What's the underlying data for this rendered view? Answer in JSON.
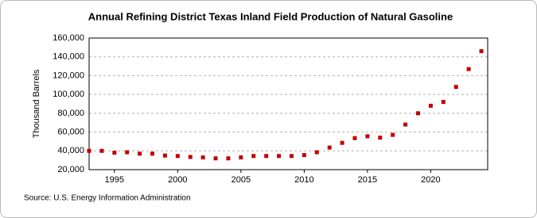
{
  "chart_data": {
    "type": "scatter",
    "title": "Annual Refining District Texas Inland Field Production of Natural Gasoline",
    "y_label": "Thousand Barrels",
    "source": "Source: U.S. Energy Information Administration",
    "x": [
      1993,
      1994,
      1995,
      1996,
      1997,
      1998,
      1999,
      2000,
      2001,
      2002,
      2003,
      2004,
      2005,
      2006,
      2007,
      2008,
      2009,
      2010,
      2011,
      2012,
      2013,
      2014,
      2015,
      2016,
      2017,
      2018,
      2019,
      2020,
      2021,
      2022,
      2023,
      2024
    ],
    "values": [
      40000,
      40000,
      38000,
      38500,
      37000,
      37000,
      35000,
      34500,
      33500,
      33000,
      32000,
      32000,
      33000,
      34500,
      34500,
      34500,
      34500,
      35500,
      38500,
      43500,
      48500,
      53500,
      55500,
      54000,
      57000,
      68000,
      80000,
      88000,
      92000,
      108000,
      127000,
      146000
    ],
    "color": "#c00000",
    "xlim": [
      1993,
      2024.5
    ],
    "xticks": [
      1995,
      2000,
      2005,
      2010,
      2015,
      2020
    ],
    "ylim": [
      20000,
      160000
    ],
    "yticks": [
      {
        "value": 20000,
        "label": "20,000"
      },
      {
        "value": 40000,
        "label": "40,000"
      },
      {
        "value": 60000,
        "label": "60,000"
      },
      {
        "value": 80000,
        "label": "80,000"
      },
      {
        "value": 100000,
        "label": "100,000"
      },
      {
        "value": 120000,
        "label": "120,000"
      },
      {
        "value": 140000,
        "label": "140,000"
      },
      {
        "value": 160000,
        "label": "160,000"
      }
    ],
    "grid": true
  }
}
